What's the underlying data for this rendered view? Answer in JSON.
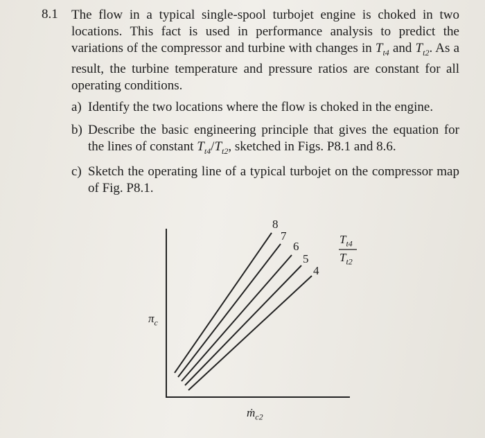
{
  "problem": {
    "number": "8.1",
    "intro": [
      "The flow in a typical single-spool turbojet engine is choked in two locations. This fact is used in performance analysis to predict the variations of the compressor and turbine with changes in ",
      {
        "base": "T",
        "sub": "t4"
      },
      " and ",
      {
        "base": "T",
        "sub": "t2"
      },
      ". As a result, the turbine temperature and pressure ratios are constant for all operating conditions."
    ],
    "items": [
      {
        "label": "a)",
        "text": [
          "Identify the two locations where the flow is choked in the engine."
        ]
      },
      {
        "label": "b)",
        "text": [
          "Describe the basic engineering principle that gives the equation for the lines of constant ",
          {
            "base": "T",
            "sub": "t4"
          },
          "/",
          {
            "base": "T",
            "sub": "t2"
          },
          ", sketched in Figs. P8.1 and 8.6."
        ]
      },
      {
        "label": "c)",
        "text": [
          "Sketch the operating line of a typical turbojet on the compressor map of Fig. P8.1."
        ]
      }
    ]
  },
  "figure": {
    "y_label": [
      {
        "base": "π",
        "sub": "c"
      }
    ],
    "x_label": [
      {
        "base": "ṁ",
        "sub": "c2"
      }
    ],
    "ratio_label": {
      "numerator": [
        {
          "base": "T",
          "sub": "t4"
        }
      ],
      "denominator": [
        {
          "base": "T",
          "sub": "t2"
        }
      ]
    },
    "curve_labels": [
      "8",
      "7",
      "6",
      "5",
      "4"
    ]
  }
}
